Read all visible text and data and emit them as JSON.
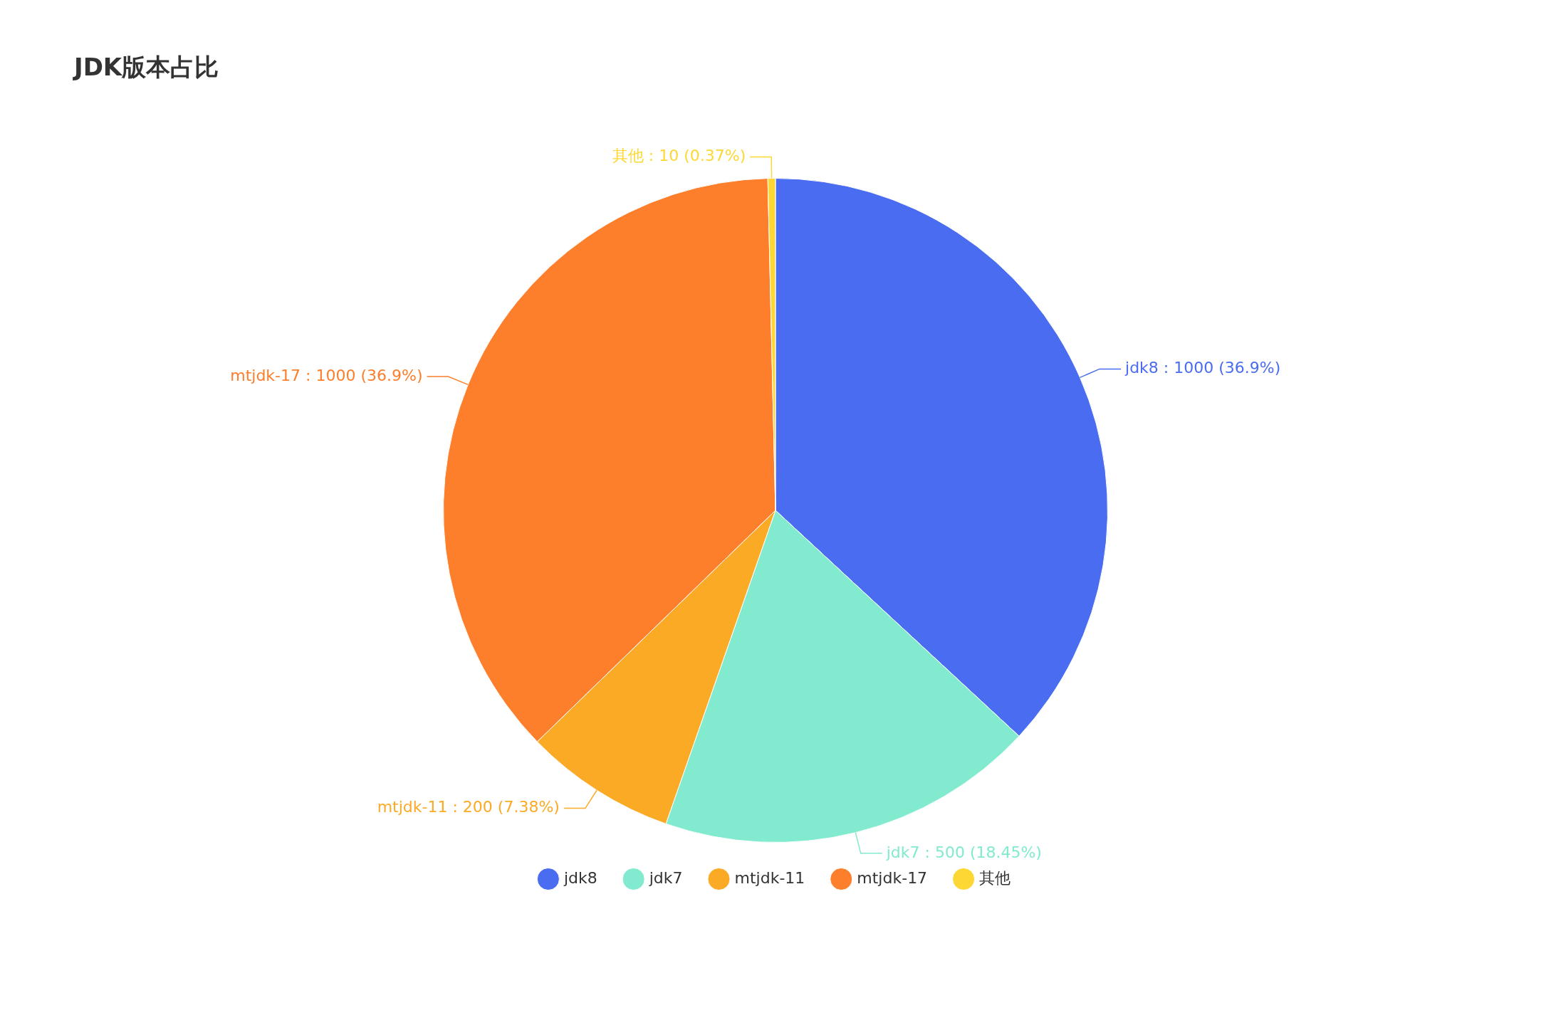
{
  "chart_data": {
    "type": "pie",
    "title": "JDK版本占比",
    "categories": [
      "jdk8",
      "jdk7",
      "mtjdk-11",
      "mtjdk-17",
      "其他"
    ],
    "values": [
      1000,
      500,
      200,
      1000,
      10
    ],
    "colors": [
      "#4a6cf0",
      "#82ebcf",
      "#fbaa26",
      "#fd7e2b",
      "#fdd835"
    ],
    "value_labels": [
      "jdk8 : 1000 (36.9%)",
      "jdk7 : 500 (18.45%)",
      "mtjdk-11 : 200 (7.38%)",
      "mtjdk-17 : 1000 (36.9%)",
      "其他 : 10 (0.37%)"
    ],
    "legend": "bottom"
  }
}
